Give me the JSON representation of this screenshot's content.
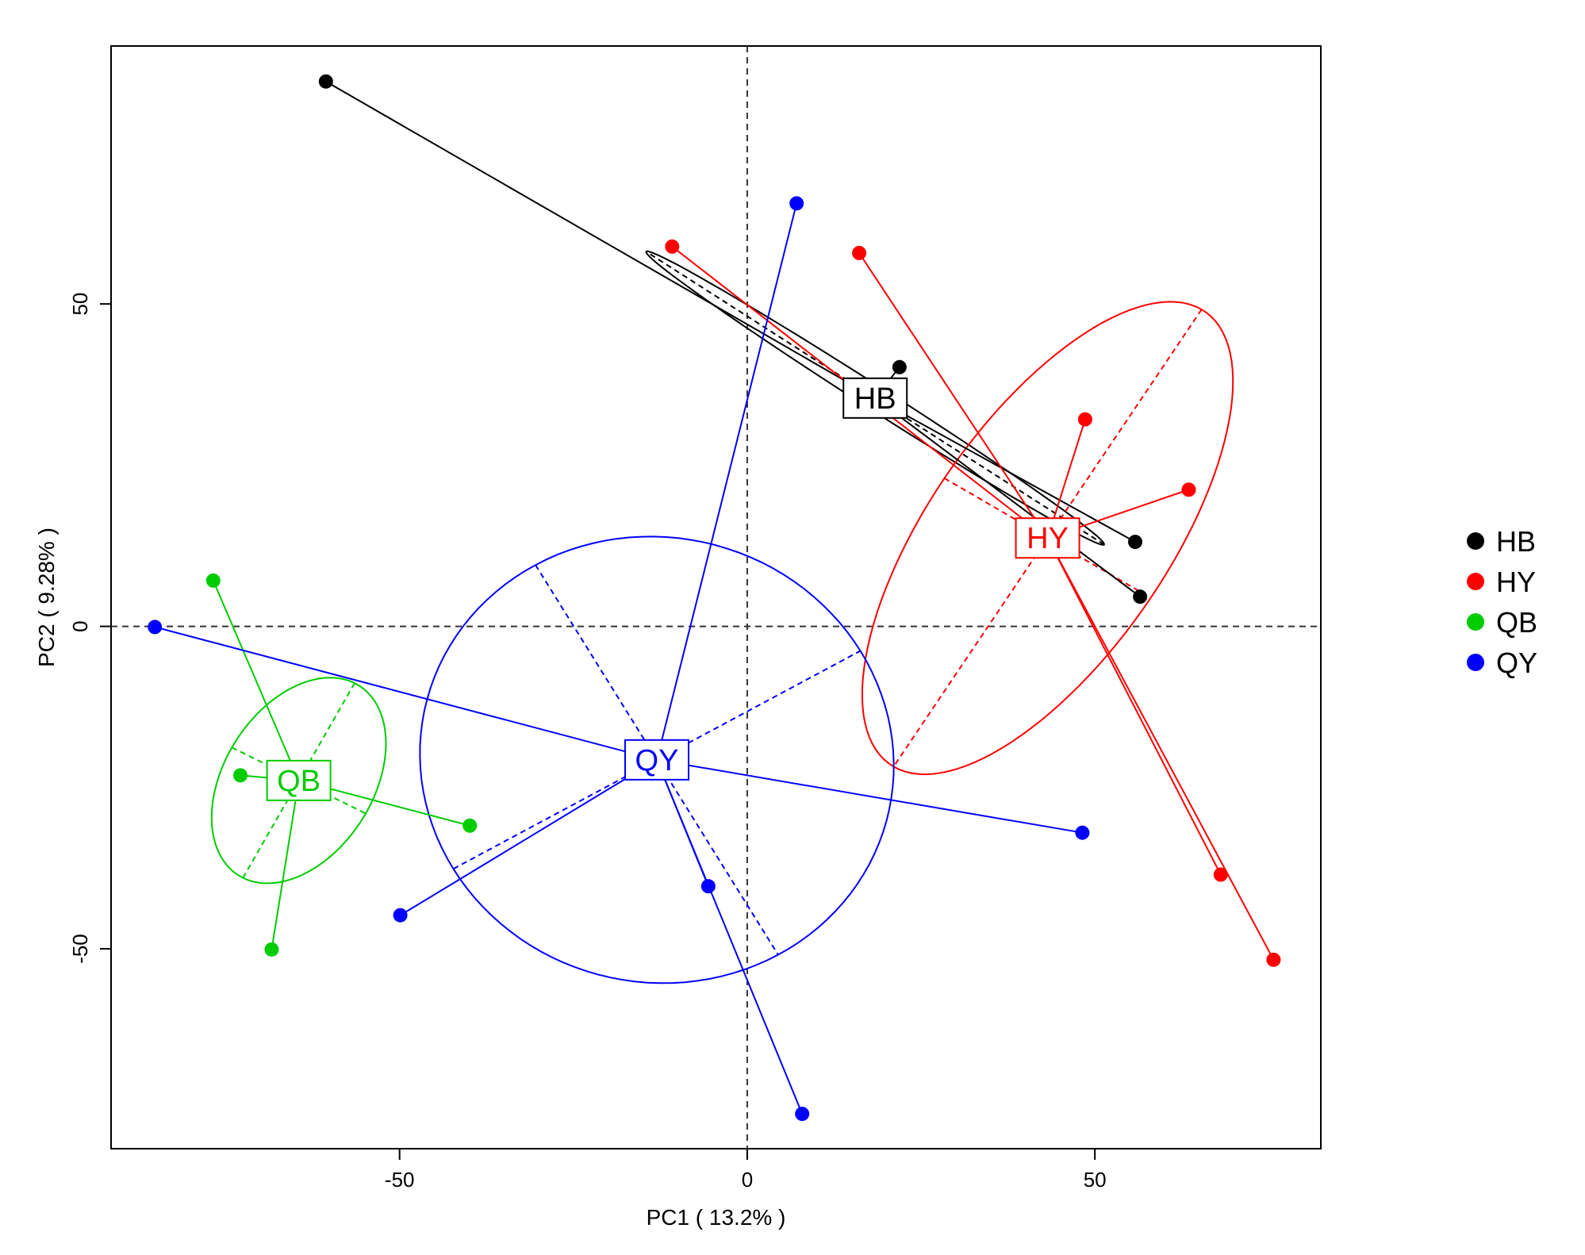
{
  "chart_data": {
    "type": "scatter",
    "xlabel": "PC1 ( 13.2% )",
    "ylabel": "PC2 ( 9.28% )",
    "xlim": [
      -91.5,
      82.5
    ],
    "ylim": [
      -81,
      90
    ],
    "xticks": [
      -50,
      0,
      50
    ],
    "yticks": [
      -50,
      0,
      50
    ],
    "grid": false,
    "reference_lines": {
      "x": 0,
      "y": 0,
      "style": "dashed"
    },
    "legend_position": "right",
    "series": [
      {
        "name": "HB",
        "color": "#000000",
        "points": [
          [
            -60.6,
            84.5
          ],
          [
            21.9,
            40.2
          ],
          [
            55.8,
            13.1
          ],
          [
            56.5,
            4.6
          ]
        ],
        "centroid": [
          18.4,
          35.4
        ],
        "ellipse": {
          "cx": 18.4,
          "cy": 35.4,
          "a": 40.0,
          "b": 1.8,
          "angle_deg": -34.6
        }
      },
      {
        "name": "HY",
        "color": "#ff0000",
        "points": [
          [
            -10.8,
            58.9
          ],
          [
            16.1,
            57.9
          ],
          [
            48.6,
            32.1
          ],
          [
            63.5,
            21.2
          ],
          [
            68.1,
            -38.5
          ],
          [
            75.7,
            -51.7
          ]
        ],
        "centroid": [
          43.2,
          13.7
        ],
        "ellipse": {
          "cx": 43.2,
          "cy": 13.7,
          "a": 41.8,
          "b": 17.5,
          "angle_deg": 58.0
        }
      },
      {
        "name": "QB",
        "color": "#00cc00",
        "points": [
          [
            -76.8,
            7.1
          ],
          [
            -72.9,
            -23.1
          ],
          [
            -39.9,
            -30.9
          ],
          [
            -68.4,
            -50.1
          ]
        ],
        "centroid": [
          -64.5,
          -23.9
        ],
        "ellipse": {
          "cx": -64.5,
          "cy": -23.9,
          "a": 17.1,
          "b": 10.9,
          "angle_deg": 62.0
        }
      },
      {
        "name": "QY",
        "color": "#0000ff",
        "points": [
          [
            -85.2,
            -0.1
          ],
          [
            7.1,
            65.6
          ],
          [
            48.2,
            -32.0
          ],
          [
            -49.9,
            -44.8
          ],
          [
            -5.6,
            -40.3
          ],
          [
            7.9,
            -75.6
          ]
        ],
        "centroid": [
          -13.0,
          -20.7
        ],
        "ellipse": {
          "cx": -13.0,
          "cy": -20.7,
          "a": 34.9,
          "b": 33.8,
          "angle_deg": 120.0
        }
      }
    ]
  }
}
